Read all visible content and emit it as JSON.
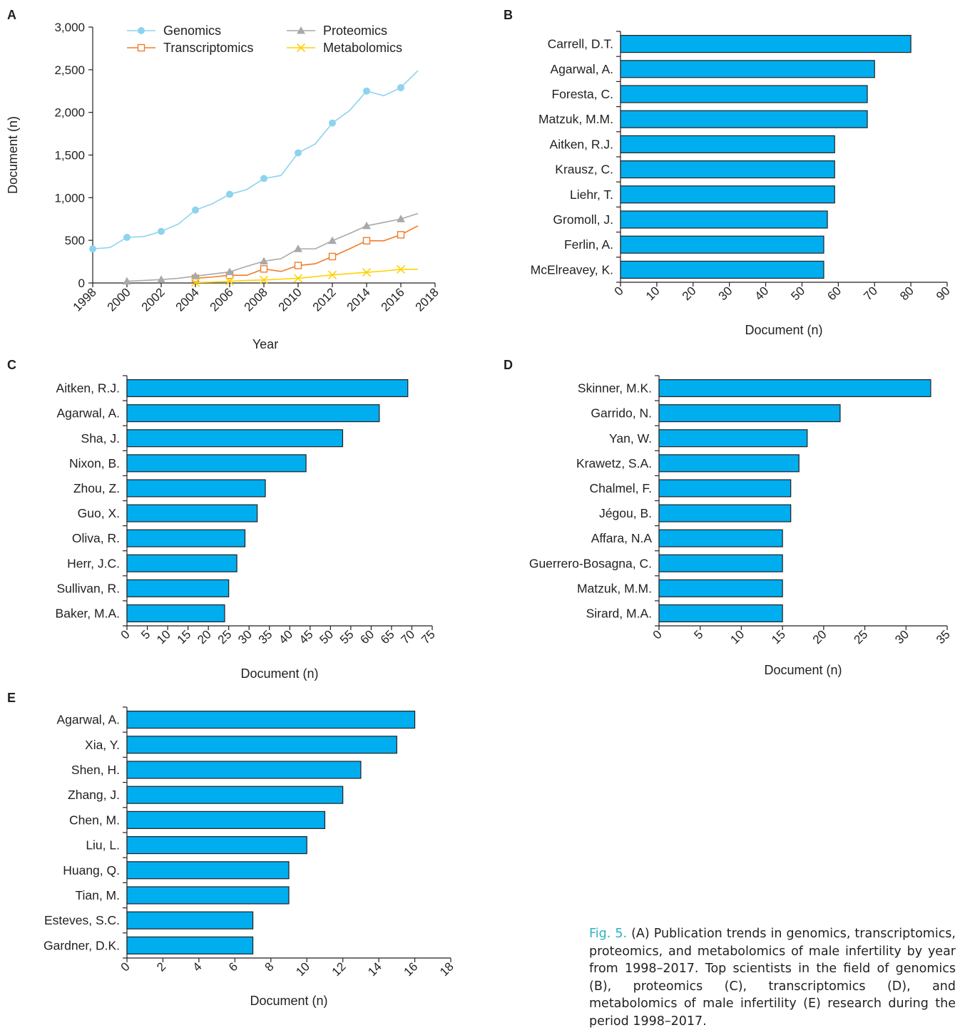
{
  "colors": {
    "bar_fill": "#00AEEF",
    "genomics": "#8DD3EE",
    "transcriptomics": "#F07D28",
    "proteomics": "#A7A9AC",
    "metabolomics": "#FFD200",
    "caption_lead": "#2BB3C0"
  },
  "caption": {
    "lead": "Fig. 5.",
    "text": "(A) Publication trends in genomics, transcriptomics, proteomics, and metabolomics of male infertility by year from 1998–2017. Top scientists in the field of genomics (B), proteomics (C), transcriptomics (D), and metabolomics of male infertility (E) research during the period 1998–2017."
  },
  "chart_data": [
    {
      "panel": "A",
      "type": "line",
      "xlabel": "Year",
      "ylabel": "Document (n)",
      "xlim": [
        1998,
        2018
      ],
      "ylim": [
        0,
        3000
      ],
      "xticks": [
        "1998",
        "2000",
        "2002",
        "2004",
        "2006",
        "2008",
        "2010",
        "2012",
        "2014",
        "2016",
        "2018"
      ],
      "yticks": [
        "0",
        "500",
        "1,000",
        "1,500",
        "2,000",
        "2,500",
        "3,000"
      ],
      "legend_position": "top",
      "series": [
        {
          "name": "Genomics",
          "marker": "circle",
          "color_key": "genomics",
          "x": [
            1998,
            1999,
            2000,
            2001,
            2002,
            2003,
            2004,
            2005,
            2006,
            2007,
            2008,
            2009,
            2010,
            2011,
            2012,
            2013,
            2014,
            2015,
            2016,
            2017
          ],
          "y": [
            400,
            415,
            535,
            545,
            605,
            690,
            855,
            930,
            1040,
            1095,
            1225,
            1260,
            1525,
            1630,
            1875,
            2020,
            2250,
            2195,
            2290,
            2490
          ]
        },
        {
          "name": "Transcriptomics",
          "marker": "square",
          "color_key": "transcriptomics",
          "x": [
            2004,
            2005,
            2006,
            2007,
            2008,
            2009,
            2010,
            2011,
            2012,
            2013,
            2014,
            2015,
            2016,
            2017
          ],
          "y": [
            55,
            70,
            90,
            90,
            165,
            135,
            205,
            225,
            310,
            400,
            495,
            495,
            565,
            670
          ]
        },
        {
          "name": "Proteomics",
          "marker": "triangle",
          "color_key": "proteomics",
          "x": [
            2000,
            2001,
            2002,
            2003,
            2004,
            2005,
            2006,
            2007,
            2008,
            2009,
            2010,
            2011,
            2012,
            2013,
            2014,
            2015,
            2016,
            2017
          ],
          "y": [
            20,
            30,
            40,
            55,
            80,
            105,
            130,
            195,
            255,
            285,
            400,
            400,
            495,
            580,
            670,
            710,
            750,
            815
          ]
        },
        {
          "name": "Metabolomics",
          "marker": "x",
          "color_key": "metabolomics",
          "x": [
            2004,
            2005,
            2006,
            2007,
            2008,
            2009,
            2010,
            2011,
            2012,
            2013,
            2014,
            2015,
            2016,
            2017
          ],
          "y": [
            5,
            10,
            20,
            30,
            35,
            45,
            55,
            75,
            95,
            110,
            125,
            140,
            160,
            160
          ]
        }
      ]
    },
    {
      "panel": "B",
      "type": "bar",
      "orientation": "horizontal",
      "xlabel": "Document (n)",
      "xlim": [
        0,
        90
      ],
      "xticks": [
        "0",
        "10",
        "20",
        "30",
        "40",
        "50",
        "60",
        "70",
        "80",
        "90"
      ],
      "categories": [
        "Carrell, D.T.",
        "Agarwal, A.",
        "Foresta, C.",
        "Matzuk, M.M.",
        "Aitken, R.J.",
        "Krausz, C.",
        "Liehr, T.",
        "Gromoll, J.",
        "Ferlin, A.",
        "McElreavey, K."
      ],
      "values": [
        80,
        70,
        68,
        68,
        59,
        59,
        59,
        57,
        56,
        56
      ]
    },
    {
      "panel": "C",
      "type": "bar",
      "orientation": "horizontal",
      "xlabel": "Document (n)",
      "xlim": [
        0,
        75
      ],
      "xticks": [
        "0",
        "5",
        "10",
        "15",
        "20",
        "25",
        "30",
        "35",
        "40",
        "45",
        "50",
        "55",
        "60",
        "65",
        "70",
        "75"
      ],
      "categories": [
        "Aitken, R.J.",
        "Agarwal, A.",
        "Sha, J.",
        "Nixon, B.",
        "Zhou, Z.",
        "Guo, X.",
        "Oliva, R.",
        "Herr, J.C.",
        "Sullivan, R.",
        "Baker, M.A."
      ],
      "values": [
        69,
        62,
        53,
        44,
        34,
        32,
        29,
        27,
        25,
        24
      ]
    },
    {
      "panel": "D",
      "type": "bar",
      "orientation": "horizontal",
      "xlabel": "Document (n)",
      "xlim": [
        0,
        35
      ],
      "xticks": [
        "0",
        "5",
        "10",
        "15",
        "20",
        "25",
        "30",
        "35"
      ],
      "categories": [
        "Skinner, M.K.",
        "Garrido, N.",
        "Yan, W.",
        "Krawetz, S.A.",
        "Chalmel, F.",
        "Jégou, B.",
        "Affara, N.A",
        "Guerrero-Bosagna, C.",
        "Matzuk, M.M.",
        "Sirard, M.A."
      ],
      "values": [
        33,
        22,
        18,
        17,
        16,
        16,
        15,
        15,
        15,
        15
      ]
    },
    {
      "panel": "E",
      "type": "bar",
      "orientation": "horizontal",
      "xlabel": "Document (n)",
      "xlim": [
        0,
        18
      ],
      "xticks": [
        "0",
        "2",
        "4",
        "6",
        "8",
        "10",
        "12",
        "14",
        "16",
        "18"
      ],
      "categories": [
        "Agarwal, A.",
        "Xia, Y.",
        "Shen, H.",
        "Zhang, J.",
        "Chen, M.",
        "Liu, L.",
        "Huang, Q.",
        "Tian, M.",
        "Esteves, S.C.",
        "Gardner, D.K."
      ],
      "values": [
        16,
        15,
        13,
        12,
        11,
        10,
        9,
        9,
        7,
        7
      ]
    }
  ]
}
